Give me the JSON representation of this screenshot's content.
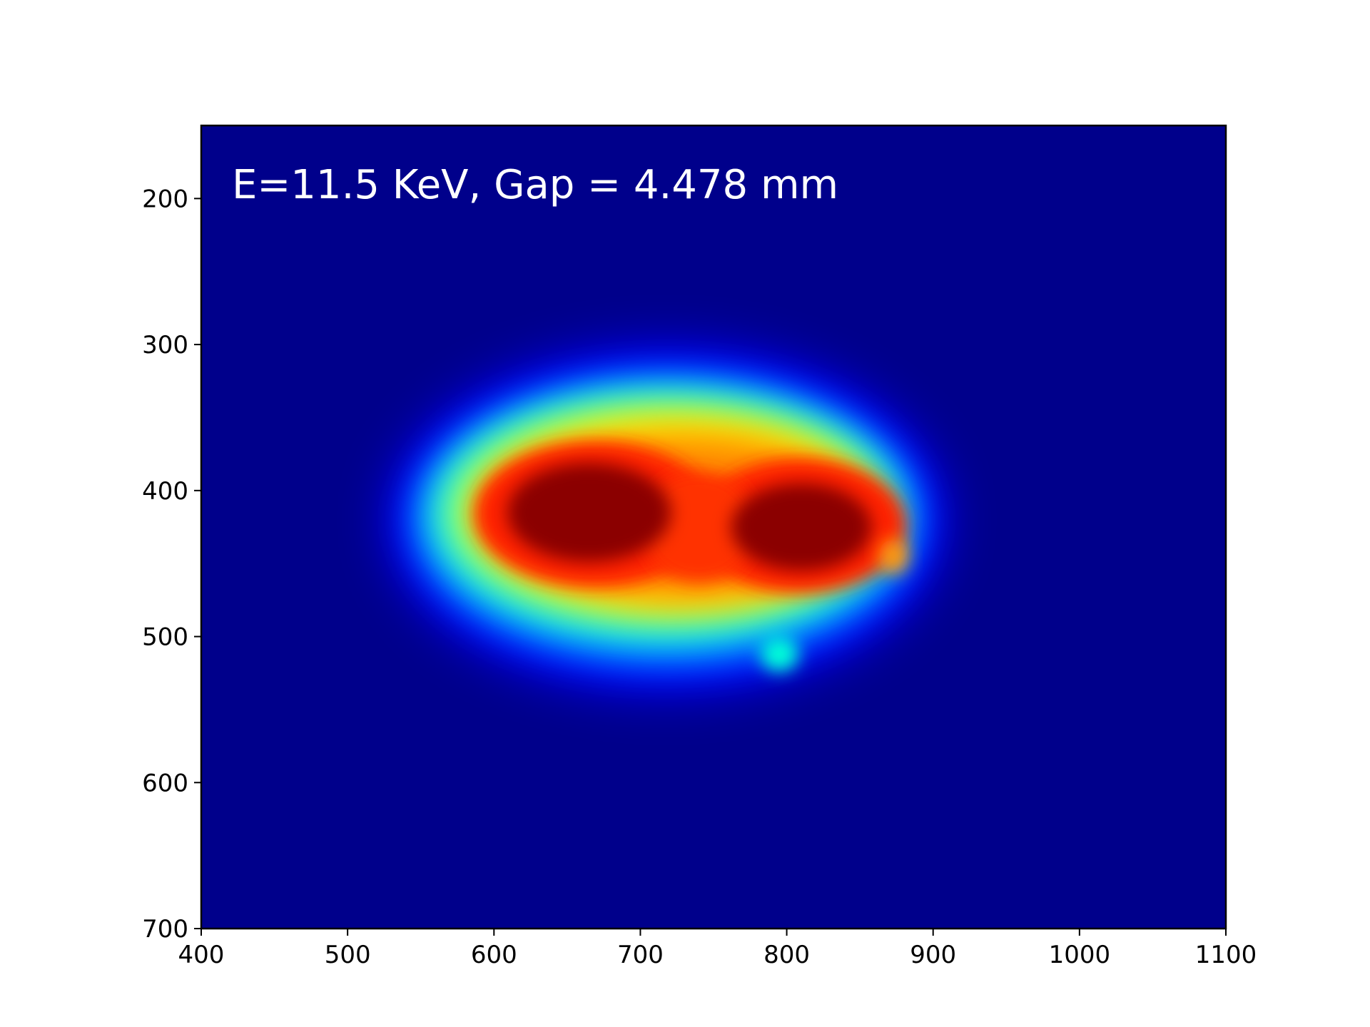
{
  "chart_data": {
    "type": "heatmap",
    "title": "",
    "xlabel": "",
    "ylabel": "",
    "annotation": "E=11.5 KeV, Gap = 4.478 mm",
    "colormap": "jet",
    "background_color": "#00008b",
    "xlim": [
      400,
      1100
    ],
    "ylim": [
      150,
      700
    ],
    "y_inverted": true,
    "xticks": [
      400,
      500,
      600,
      700,
      800,
      900,
      1000,
      1100
    ],
    "xtick_labels": [
      "400",
      "500",
      "600",
      "700",
      "800",
      "900",
      "1000",
      "1100"
    ],
    "yticks": [
      200,
      300,
      400,
      500,
      600,
      700
    ],
    "ytick_labels": [
      "200",
      "300",
      "400",
      "500",
      "600",
      "700"
    ],
    "grid": false,
    "features": [
      {
        "name": "left-peak",
        "center": [
          665,
          415
        ],
        "radius": [
          70,
          42
        ],
        "level": 1.0
      },
      {
        "name": "right-peak",
        "center": [
          810,
          425
        ],
        "radius": [
          62,
          40
        ],
        "level": 0.97
      },
      {
        "name": "beam-envelope",
        "x_range": [
          540,
          895
        ],
        "y_range": [
          320,
          530
        ]
      },
      {
        "name": "side-spot",
        "center": [
          875,
          445
        ],
        "level": 0.7
      },
      {
        "name": "bottom-spot",
        "center": [
          795,
          512
        ],
        "level": 0.4
      }
    ]
  }
}
